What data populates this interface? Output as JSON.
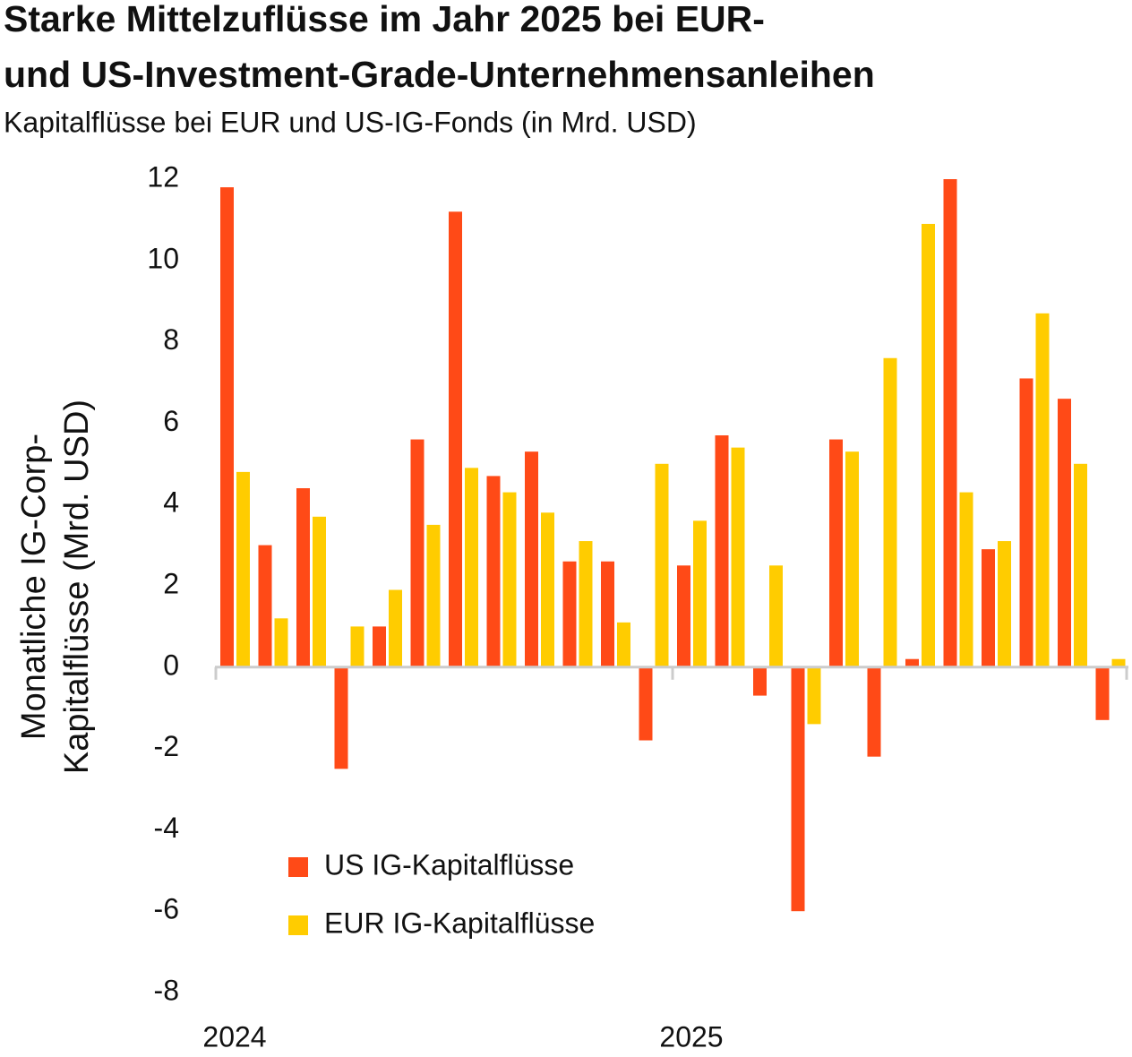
{
  "chart_data": {
    "type": "bar",
    "title": [
      "Starke Mittelzuflüsse im Jahr 2025 bei EUR-",
      "und US-Investment-Grade-Unternehmensanleihen"
    ],
    "subtitle": "Kapitalflüsse bei EUR und US-IG-Fonds (in Mrd. USD)",
    "ylabel": [
      "Monatliche IG-Corp-",
      "Kapitalflüsse  (Mrd. USD)"
    ],
    "categories": [
      "2024",
      null,
      null,
      null,
      null,
      null,
      null,
      null,
      null,
      null,
      null,
      null,
      "2025",
      null,
      null,
      null,
      null,
      null,
      null,
      null,
      null,
      null,
      null,
      null
    ],
    "series": [
      {
        "name": "US IG-Kapitalflüsse",
        "color": "#ff4a17",
        "values": [
          11.8,
          3.0,
          4.4,
          -2.5,
          1.0,
          5.6,
          11.2,
          4.7,
          5.3,
          2.6,
          2.6,
          -1.8,
          2.5,
          5.7,
          -0.7,
          -6.0,
          5.6,
          -2.2,
          0.2,
          12.0,
          2.9,
          7.1,
          6.6,
          -1.3
        ]
      },
      {
        "name": "EUR IG-Kapitalflüsse",
        "color": "#ffcc00",
        "values": [
          4.8,
          1.2,
          3.7,
          1.0,
          1.9,
          3.5,
          4.9,
          4.3,
          3.8,
          3.1,
          1.1,
          5.0,
          3.6,
          5.4,
          2.5,
          -1.4,
          5.3,
          7.6,
          10.9,
          4.3,
          3.1,
          8.7,
          5.0,
          0.2
        ]
      }
    ],
    "ylim": [
      -8,
      12
    ],
    "yticks": [
      -8,
      -6,
      -4,
      -2,
      0,
      2,
      4,
      6,
      8,
      10,
      12
    ],
    "grid": false,
    "legend": "lower-left"
  }
}
